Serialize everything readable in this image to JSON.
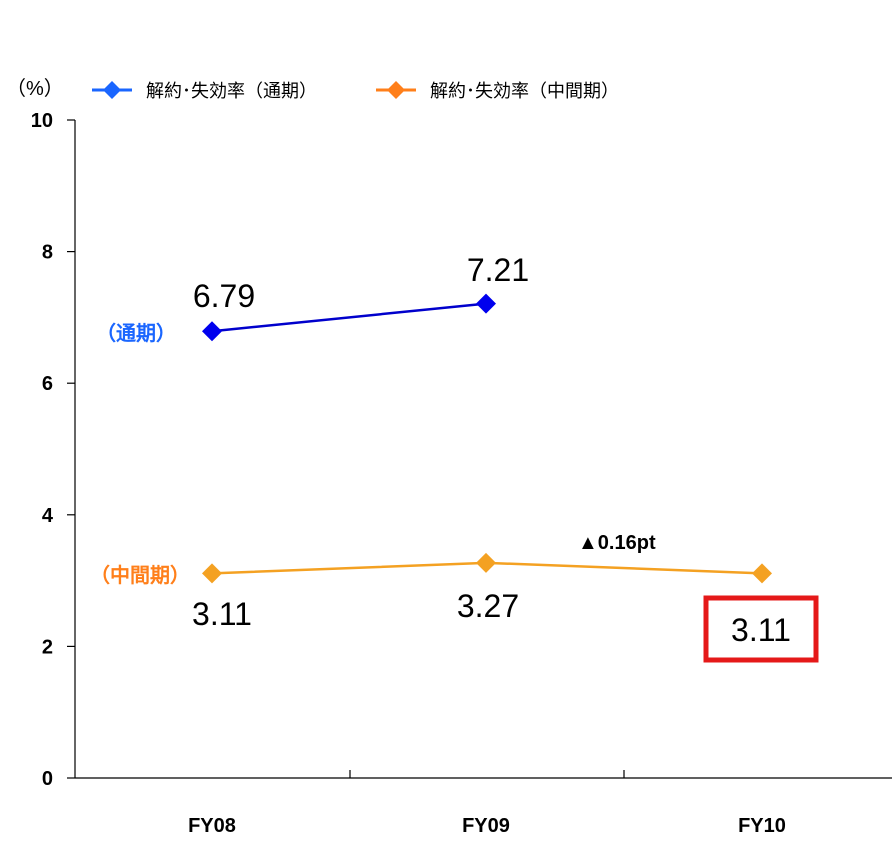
{
  "chart_data": {
    "type": "line",
    "y_unit": "（%）",
    "categories": [
      "FY08",
      "FY09",
      "FY10"
    ],
    "ylim": [
      0,
      10
    ],
    "yticks": [
      0,
      2,
      4,
      6,
      8,
      10
    ],
    "grid": false,
    "legend_position": "top",
    "series": [
      {
        "name": "解約･失効率（通期）",
        "values": [
          6.79,
          7.21,
          null
        ],
        "value_labels": [
          "6.79",
          "7.21",
          null
        ],
        "side_label": "（通期）",
        "line_color": "#0000cc",
        "marker_color": "#0000ee",
        "legend_color": "#1a66ff",
        "side_label_color": "#1a66ff"
      },
      {
        "name": "解約･失効率（中間期）",
        "values": [
          3.11,
          3.27,
          3.11
        ],
        "value_labels": [
          "3.11",
          "3.27",
          "3.11"
        ],
        "side_label": "（中間期）",
        "line_color": "#f4a122",
        "marker_color": "#f4a122",
        "legend_color": "#ff7f1a",
        "side_label_color": "#ff7f1a"
      }
    ],
    "annotation": {
      "text": "▲0.16pt",
      "highlight_value": "3.11",
      "highlight_color": "#e51919"
    }
  }
}
